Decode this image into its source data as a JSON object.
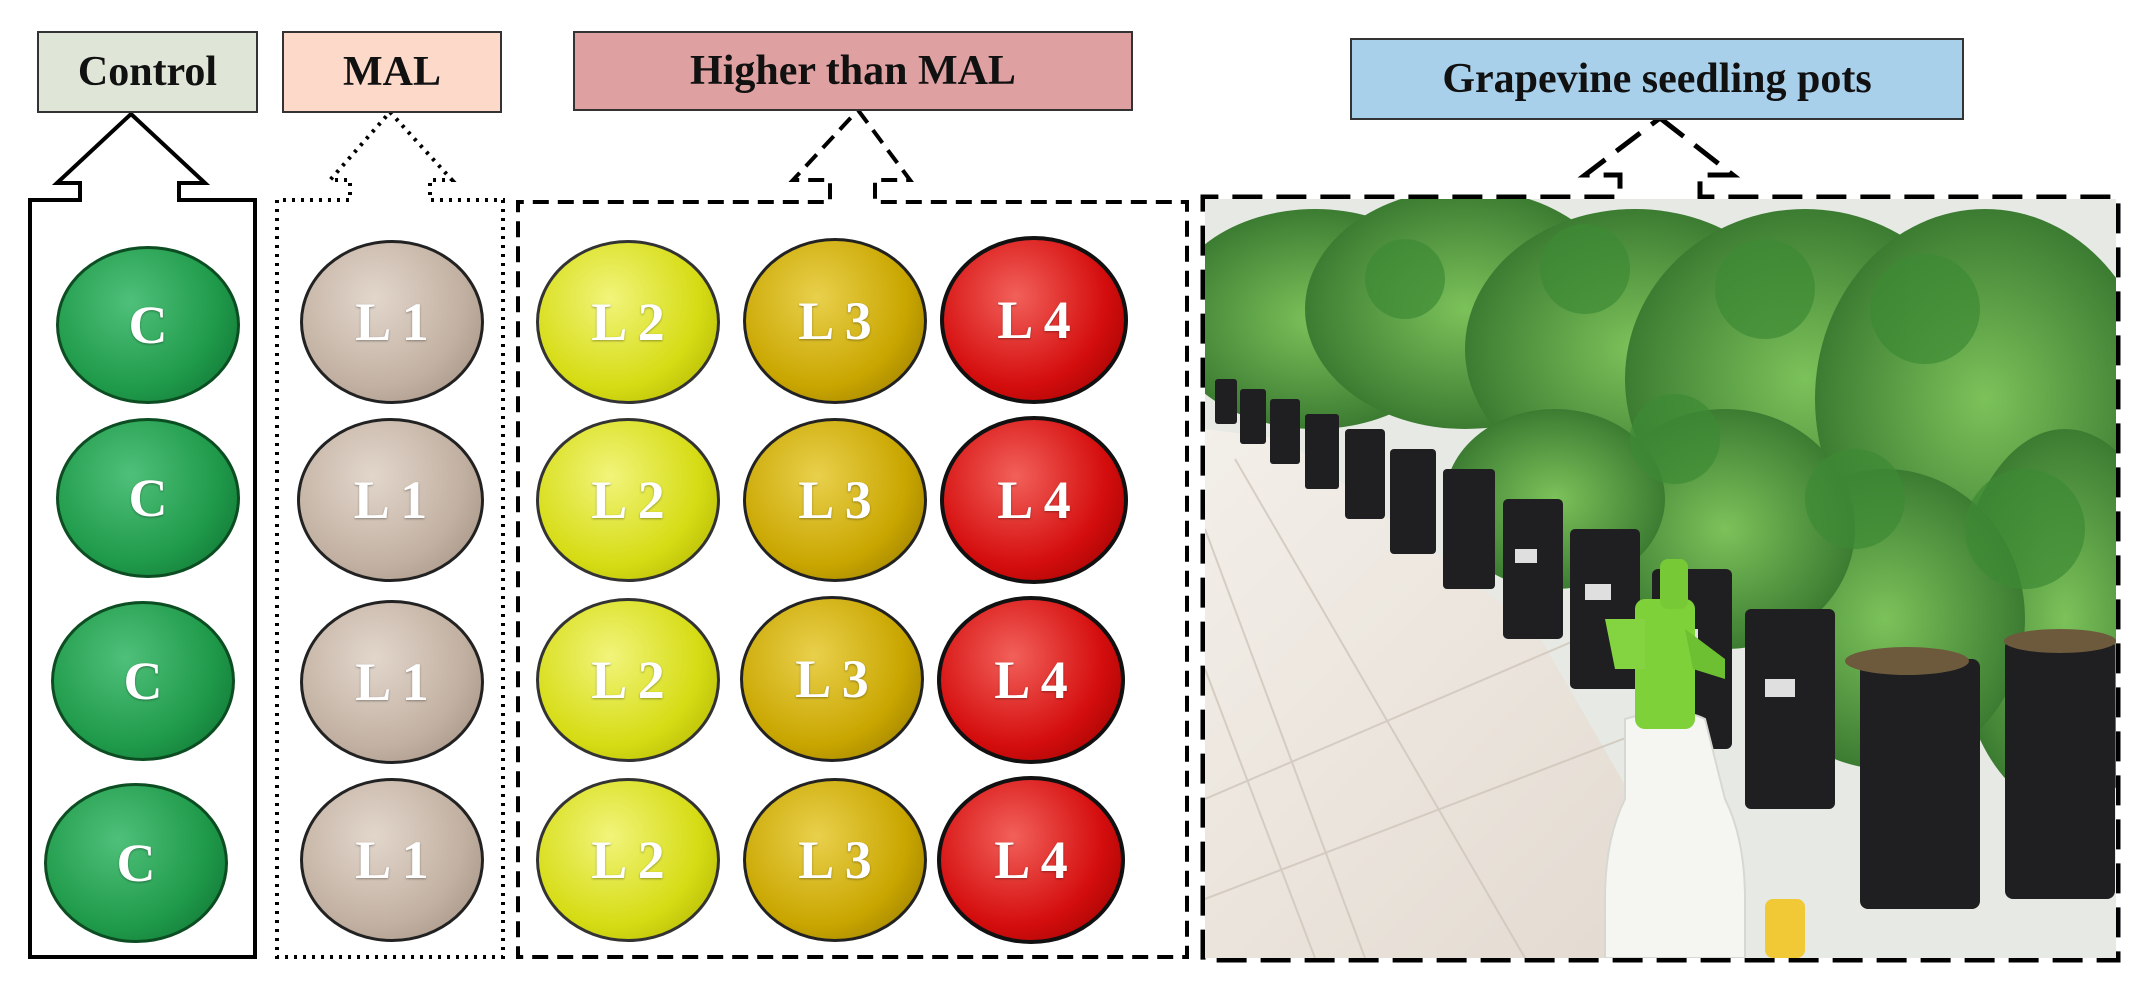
{
  "labels": {
    "control": "Control",
    "mal": "MAL",
    "higher": "Higher than MAL",
    "pots": "Grapevine seedling pots"
  },
  "groups": {
    "control": {
      "fill": "#1f9a4a",
      "items": [
        "C",
        "C",
        "C",
        "C"
      ]
    },
    "l1": {
      "fill": "#c2b1a2",
      "items": [
        "L 1",
        "L 1",
        "L 1",
        "L 1"
      ]
    },
    "l2": {
      "fill": "#d6dc14",
      "items": [
        "L 2",
        "L 2",
        "L 2",
        "L 2"
      ]
    },
    "l3": {
      "fill": "#c9a600",
      "items": [
        "L 3",
        "L 3",
        "L 3",
        "L 3"
      ]
    },
    "l4": {
      "fill": "#d40d0d",
      "items": [
        "L 4",
        "L 4",
        "L 4",
        "L 4"
      ]
    }
  },
  "colors": {
    "control_box": "#dfe6d8",
    "mal_box": "#fcd9c8",
    "higher_box": "#dea0a0",
    "pots_box": "#a8d0ea"
  }
}
